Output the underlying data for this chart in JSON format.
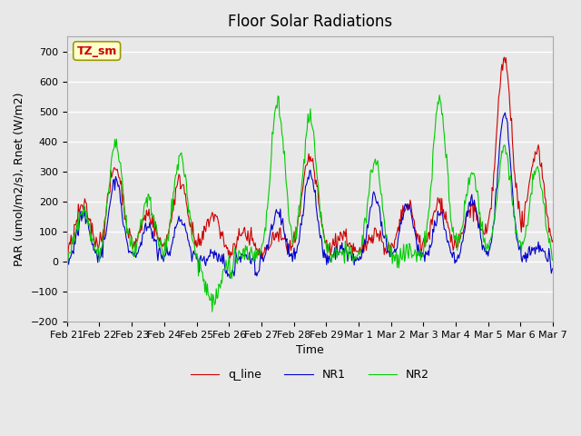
{
  "title": "Floor Solar Radiations",
  "xlabel": "Time",
  "ylabel": "PAR (umol/m2/s), Rnet (W/m2)",
  "ylim": [
    -200,
    750
  ],
  "yticks": [
    -200,
    -100,
    0,
    100,
    200,
    300,
    400,
    500,
    600,
    700
  ],
  "x_labels": [
    "Feb 21",
    "Feb 22",
    "Feb 23",
    "Feb 24",
    "Feb 25",
    "Feb 26",
    "Feb 27",
    "Feb 28",
    "Feb 29",
    "Mar 1",
    "Mar 2",
    "Mar 3",
    "Mar 4",
    "Mar 5",
    "Mar 6",
    "Mar 7"
  ],
  "bg_color": "#e8e8e8",
  "plot_bg_color": "#e8e8e8",
  "grid_color": "white",
  "annotation_text": "TZ_sm",
  "annotation_bg": "#ffffcc",
  "annotation_border": "#999900",
  "line_colors": {
    "q_line": "#cc0000",
    "NR1": "#0000cc",
    "NR2": "#00cc00"
  },
  "legend_labels": [
    "q_line",
    "NR1",
    "NR2"
  ],
  "n_points": 600,
  "q_peak_days": [
    0,
    1,
    2,
    3,
    4,
    5,
    6,
    7,
    8,
    9,
    10,
    11,
    12,
    13,
    14
  ],
  "q_peak_vals": [
    185,
    315,
    160,
    270,
    155,
    100,
    90,
    345,
    90,
    100,
    185,
    200,
    180,
    670,
    375
  ],
  "nr1_peak_vals": [
    155,
    275,
    125,
    145,
    25,
    15,
    165,
    295,
    45,
    215,
    190,
    160,
    205,
    500,
    50
  ],
  "nr2_peak_vals": [
    170,
    400,
    200,
    350,
    -130,
    30,
    530,
    480,
    40,
    335,
    30,
    535,
    295,
    380,
    300
  ]
}
